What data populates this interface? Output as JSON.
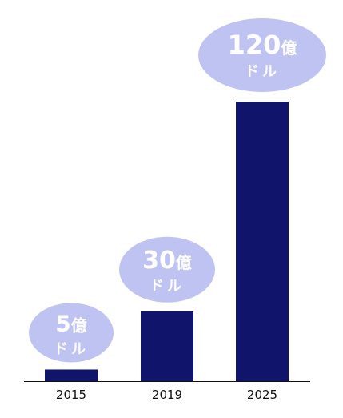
{
  "chart_data": {
    "type": "bar",
    "title": "",
    "xlabel": "",
    "ylabel": "",
    "categories": [
      "2015",
      "2019",
      "2025"
    ],
    "values": [
      5,
      30,
      120
    ],
    "ylim": [
      0,
      120
    ],
    "grid": false,
    "labels": [
      {
        "number": "5",
        "unit": "億",
        "sub": "ドル"
      },
      {
        "number": "30",
        "unit": "億",
        "sub": "ドル"
      },
      {
        "number": "120",
        "unit": "億",
        "sub": "ドル"
      }
    ],
    "colors": {
      "bar": "#10156b",
      "bubble": "#bfc3f2",
      "bubble_text": "#ffffff",
      "axis": "#111111"
    }
  }
}
